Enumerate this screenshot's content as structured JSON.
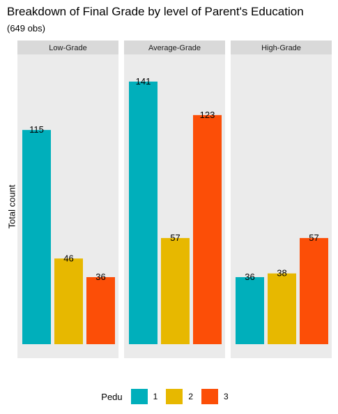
{
  "chart_data": {
    "type": "bar",
    "title": "Breakdown of Final Grade by level of Parent's Education",
    "subtitle": "(649 obs)",
    "ylabel": "Total count",
    "xlabel": "",
    "ylim": [
      0,
      155
    ],
    "grid": false,
    "legend_position": "bottom",
    "legend_title": "Pedu",
    "facets": [
      "Low-Grade",
      "Average-Grade",
      "High-Grade"
    ],
    "series": [
      {
        "name": "1",
        "color": "#00AFBB",
        "values": [
          115,
          141,
          36
        ]
      },
      {
        "name": "2",
        "color": "#E7B800",
        "values": [
          46,
          57,
          38
        ]
      },
      {
        "name": "3",
        "color": "#FC4E07",
        "values": [
          36,
          123,
          57
        ]
      }
    ]
  }
}
